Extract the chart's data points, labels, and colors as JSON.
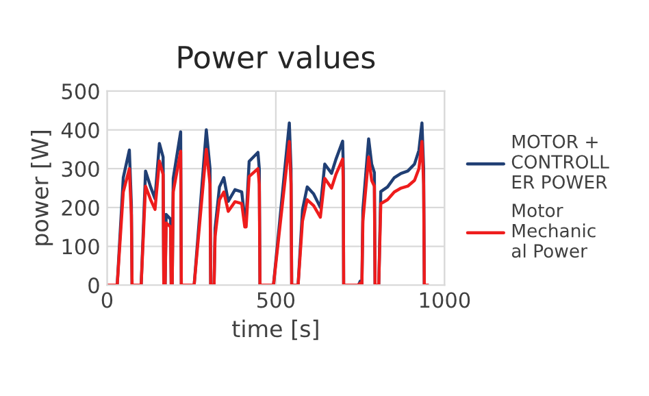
{
  "chart_data": {
    "type": "line",
    "title": "Power values",
    "xlabel": "time [s]",
    "ylabel": "power [W]",
    "x": [
      0,
      30,
      48,
      66,
      72,
      74,
      101,
      114,
      129,
      142,
      155,
      166,
      168,
      172,
      175,
      188,
      190,
      193,
      196,
      218,
      220,
      258,
      294,
      305,
      307,
      317,
      320,
      333,
      346,
      359,
      379,
      399,
      408,
      412,
      421,
      447,
      451,
      453,
      493,
      540,
      545,
      547,
      566,
      579,
      593,
      612,
      632,
      645,
      665,
      678,
      698,
      700,
      701,
      745,
      750,
      755,
      758,
      775,
      784,
      792,
      794,
      805,
      811,
      831,
      851,
      871,
      891,
      911,
      924,
      933,
      938,
      940,
      950
    ],
    "series": [
      {
        "name": "MOTOR +\nCONTROLL\nER POWER",
        "color": "#203f74",
        "values": [
          0,
          0,
          277,
          348,
          206,
          0,
          0,
          294,
          253,
          223,
          365,
          330,
          0,
          0,
          182,
          170,
          0,
          0,
          275,
          395,
          0,
          0,
          400,
          300,
          0,
          0,
          146,
          253,
          277,
          216,
          246,
          240,
          170,
          170,
          319,
          342,
          300,
          0,
          0,
          418,
          300,
          0,
          0,
          194,
          253,
          235,
          200,
          312,
          288,
          324,
          371,
          300,
          0,
          0,
          10,
          0,
          194,
          377,
          312,
          290,
          0,
          0,
          241,
          253,
          277,
          288,
          294,
          312,
          347,
          418,
          300,
          0,
          0
        ]
      },
      {
        "name": "Motor\nMechanic\nal Power",
        "color": "#ee1c1c",
        "values": [
          0,
          0,
          240,
          300,
          180,
          0,
          0,
          255,
          220,
          195,
          320,
          285,
          0,
          0,
          160,
          150,
          0,
          0,
          240,
          345,
          0,
          0,
          350,
          260,
          0,
          0,
          125,
          220,
          240,
          190,
          215,
          210,
          150,
          150,
          280,
          300,
          260,
          0,
          0,
          370,
          260,
          0,
          0,
          165,
          220,
          205,
          175,
          275,
          250,
          285,
          325,
          260,
          0,
          0,
          5,
          0,
          165,
          330,
          270,
          255,
          0,
          0,
          210,
          220,
          240,
          250,
          255,
          270,
          300,
          370,
          260,
          0,
          0
        ]
      }
    ],
    "xlim": [
      0,
      1000
    ],
    "xticks": [
      0,
      500,
      1000
    ],
    "ylim": [
      0,
      500
    ],
    "yticks": [
      0,
      100,
      200,
      300,
      400,
      500
    ],
    "grid": true,
    "legend": "right",
    "marker": "none",
    "line_style": "solid"
  }
}
